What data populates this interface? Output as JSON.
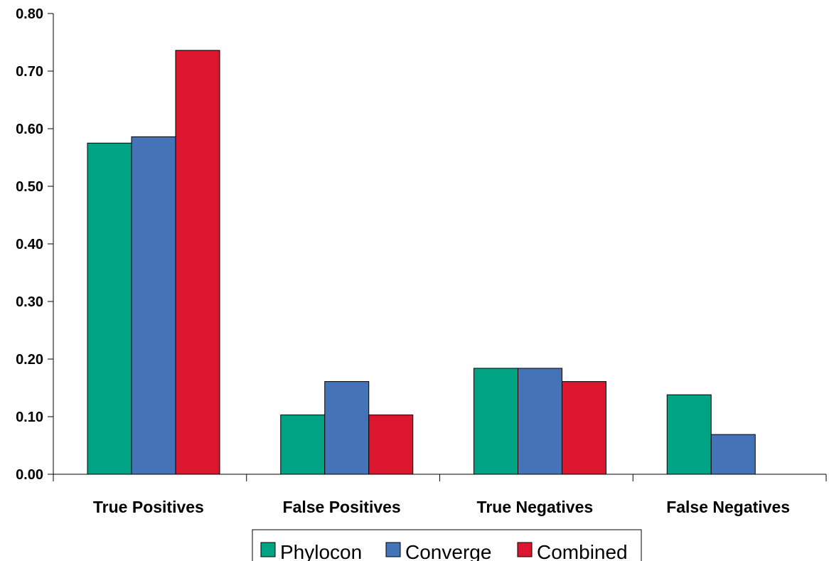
{
  "chart_data": {
    "type": "bar",
    "title": "",
    "xlabel": "",
    "ylabel": "",
    "categories": [
      "True Positives",
      "False Positives",
      "True Negatives",
      "False Negatives"
    ],
    "series": [
      {
        "name": "Phylocon",
        "color": "#00A383",
        "values": [
          0.575,
          0.103,
          0.184,
          0.138
        ]
      },
      {
        "name": "Converge",
        "color": "#4573B8",
        "values": [
          0.586,
          0.161,
          0.184,
          0.069
        ]
      },
      {
        "name": "Combined",
        "color": "#DC162E",
        "values": [
          0.736,
          0.103,
          0.161,
          0.0
        ]
      }
    ],
    "ylim": [
      0,
      0.8
    ],
    "yticks": [
      0.0,
      0.1,
      0.2,
      0.3,
      0.4,
      0.5,
      0.6,
      0.7,
      0.8
    ],
    "ytick_labels": [
      "0.00",
      "0.10",
      "0.20",
      "0.30",
      "0.40",
      "0.50",
      "0.60",
      "0.70",
      "0.80"
    ],
    "grid": false,
    "legend_position": "bottom"
  }
}
